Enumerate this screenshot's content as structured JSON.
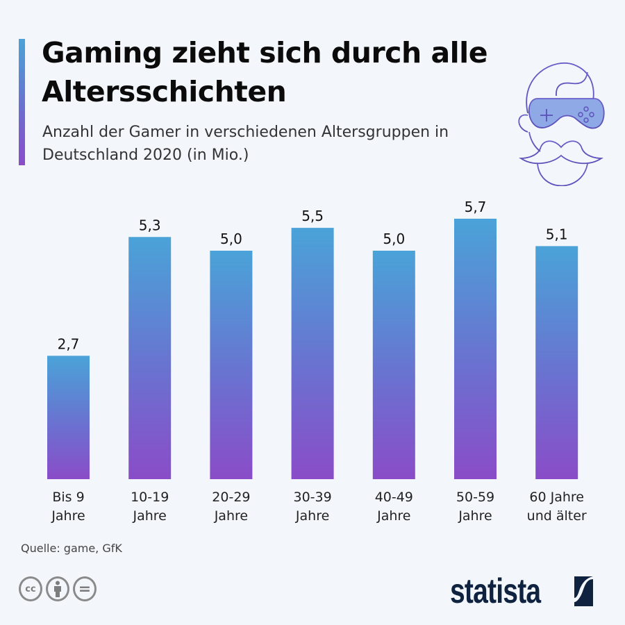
{
  "header": {
    "title": "Gaming zieht sich durch alle Altersschichten",
    "subtitle": "Anzahl der Gamer in verschiedenen Altersgruppen in Deutschland 2020 (in Mio.)",
    "illustration": "gamer-face-with-controller-goggles-icon"
  },
  "colors": {
    "bar_top": "#4aa3d8",
    "bar_bottom": "#8a4cc8",
    "title_text": "#0b0b0b",
    "background": "#f3f7fb",
    "brand": "#0f2340"
  },
  "chart_data": {
    "type": "bar",
    "title": "Gaming zieht sich durch alle Altersschichten",
    "subtitle": "Anzahl der Gamer in verschiedenen Altersgruppen in Deutschland 2020 (in Mio.)",
    "categories": [
      "Bis 9 Jahre",
      "10-19 Jahre",
      "20-29 Jahre",
      "30-39 Jahre",
      "40-49 Jahre",
      "50-59 Jahre",
      "60 Jahre und älter"
    ],
    "category_lines": [
      [
        "Bis 9",
        "Jahre"
      ],
      [
        "10-19",
        "Jahre"
      ],
      [
        "20-29",
        "Jahre"
      ],
      [
        "30-39",
        "Jahre"
      ],
      [
        "40-49",
        "Jahre"
      ],
      [
        "50-59",
        "Jahre"
      ],
      [
        "60 Jahre",
        "und älter"
      ]
    ],
    "values": [
      2.7,
      5.3,
      5.0,
      5.5,
      5.0,
      5.7,
      5.1
    ],
    "value_labels": [
      "2,7",
      "5,3",
      "5,0",
      "5,5",
      "5,0",
      "5,7",
      "5,1"
    ],
    "xlabel": "",
    "ylabel": "",
    "unit": "Mio.",
    "ylim": [
      0,
      5.7
    ],
    "grid": false,
    "legend": "none"
  },
  "footer": {
    "source": "Quelle: game, GfK",
    "license_icons": [
      {
        "name": "cc-icon",
        "text": "cc"
      },
      {
        "name": "attribution-icon",
        "text": ""
      },
      {
        "name": "no-derivatives-icon",
        "text": "="
      }
    ],
    "brand": "statista"
  }
}
